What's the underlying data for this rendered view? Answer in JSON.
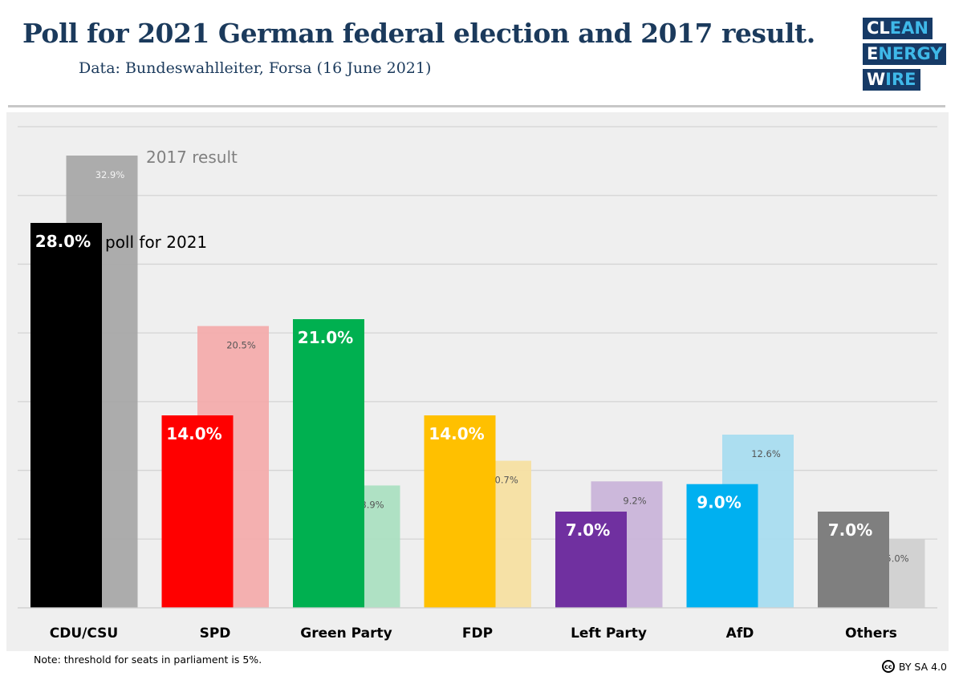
{
  "header": {
    "title": "Poll for 2021 German federal election and 2017 result.",
    "subtitle": "Data: Bundeswahlleiter, Forsa (16 June 2021)",
    "logo": [
      "CLEAN",
      "ENERGY",
      "WIRE"
    ]
  },
  "chart_data": {
    "type": "bar",
    "title": "Poll for 2021 German federal election and 2017 result.",
    "categories": [
      "CDU/CSU",
      "SPD",
      "Green Party",
      "FDP",
      "Left Party",
      "AfD",
      "Others"
    ],
    "series": [
      {
        "name": "poll for 2021",
        "values": [
          28.0,
          14.0,
          21.0,
          14.0,
          7.0,
          9.0,
          7.0
        ],
        "colors": [
          "#000000",
          "#ff0000",
          "#00b050",
          "#ffc000",
          "#7030a0",
          "#00b0f0",
          "#7f7f7f"
        ]
      },
      {
        "name": "2017 result",
        "values": [
          32.9,
          20.5,
          8.9,
          10.7,
          9.2,
          12.6,
          5.0
        ],
        "colors": [
          "#a6a6a6",
          "#f4aaaa",
          "#a9dfc0",
          "#f6e0a0",
          "#c9b3d9",
          "#a6dcf0",
          "#cfcfcf"
        ]
      }
    ],
    "ylim": [
      0,
      35
    ],
    "grid": true,
    "yticks_shown": false,
    "legend": "inline labels on first category"
  },
  "footer": {
    "note": "Note: threshold for seats in parliament is 5%.",
    "license": "BY SA 4.0",
    "cc_icon": "cc"
  }
}
